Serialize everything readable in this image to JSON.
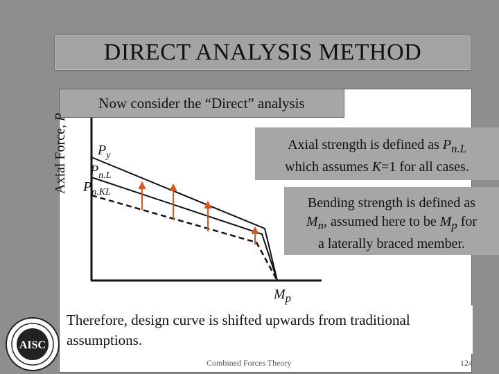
{
  "slide": {
    "title": "DIRECT ANALYSIS METHOD",
    "subtitle": "Now consider the “Direct” analysis",
    "box1": {
      "line1_prefix": "Axial strength is defined as ",
      "line1_sym": "P",
      "line1_sub": "n.L",
      "line2_a": "which assumes ",
      "line2_k": "K",
      "line2_b": "=1 for all cases."
    },
    "box2": {
      "line1": "Bending strength is defined as",
      "line2_sym1": "M",
      "line2_sub1": "n",
      "line2_mid": ", assumed here to be ",
      "line2_sym2": "M",
      "line2_sub2": "p",
      "line2_end": " for",
      "line3": "a laterally braced member."
    },
    "conclusion": "Therefore, design curve is shifted upwards from traditional assumptions.",
    "footer": "Combined Forces Theory",
    "page_number": "124"
  },
  "diagram": {
    "y_axis_label": "Axial Force, ",
    "y_axis_symbol": "P",
    "labels": {
      "py_sym": "P",
      "py_sub": "y",
      "pnl_sym": "P",
      "pnl_sub": "n.L",
      "pnkl_sym": "P",
      "pnkl_sub": "n.KL",
      "mp_sym": "M",
      "mp_sub": "p"
    },
    "colors": {
      "arrow": "#e0551b",
      "line": "#111111"
    },
    "logo_name": "aisc-logo"
  }
}
